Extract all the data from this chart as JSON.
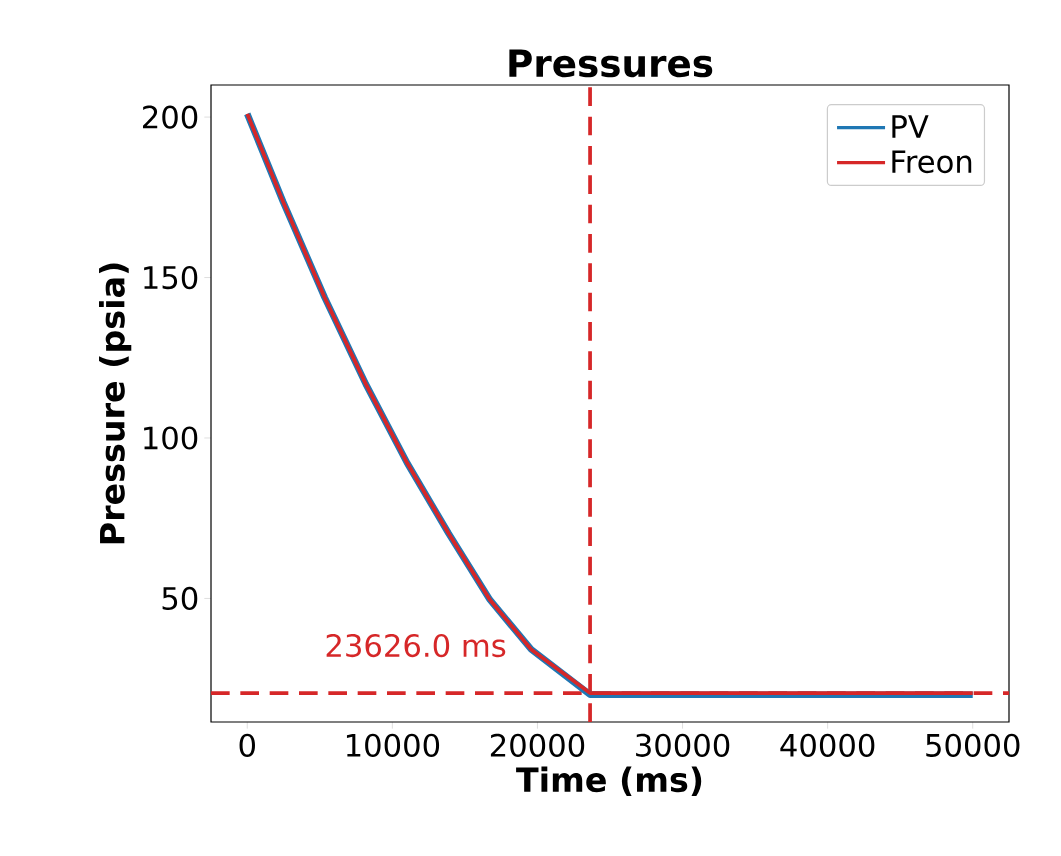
{
  "chart_data": {
    "type": "line",
    "title": "Pressures",
    "xlabel": "Time (ms)",
    "ylabel": "Pressure (psia)",
    "x": [
      0,
      2480,
      5330,
      8180,
      11020,
      13870,
      16720,
      19570,
      23626,
      30000,
      40000,
      50000
    ],
    "series": [
      {
        "name": "PV",
        "color": "#1f77b4",
        "values": [
          201,
          173.5,
          143.8,
          116.7,
          92.2,
          70.3,
          49.6,
          34.1,
          20.0,
          20.0,
          20.0,
          20.0
        ]
      },
      {
        "name": "Freon",
        "color": "#d62728",
        "values": [
          201,
          173.5,
          143.8,
          116.7,
          92.2,
          70.3,
          49.6,
          34.1,
          20.5,
          20.5,
          20.5,
          20.5
        ]
      }
    ],
    "xlim": [
      -2500,
      52500
    ],
    "ylim": [
      11.5,
      210
    ],
    "xticks": [
      0,
      10000,
      20000,
      30000,
      40000,
      50000
    ],
    "yticks": [
      50,
      100,
      150,
      200
    ],
    "ref_lines": [
      {
        "axis": "x",
        "value": 23626,
        "label": "23626.0 ms",
        "color": "#d62728",
        "line_style": "dashed"
      },
      {
        "axis": "y",
        "value": 20.5,
        "color": "#d62728",
        "line_style": "dashed"
      }
    ],
    "legend": "top right",
    "grid": false,
    "marker": "none",
    "line_style": "solid"
  }
}
